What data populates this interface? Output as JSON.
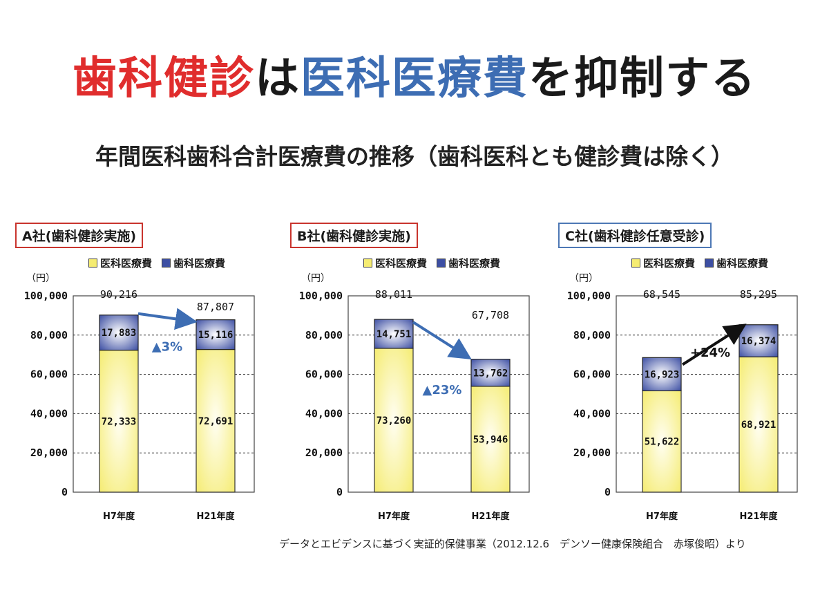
{
  "title": {
    "part1": "歯科健診",
    "part2": "は",
    "part3": "医科医療費",
    "part4": "を抑制する",
    "colors": {
      "part1": "#e02d2d",
      "part2": "#1a1a1a",
      "part3": "#3d6db3",
      "part4": "#1a1a1a"
    }
  },
  "subtitle": "年間医科歯科合計医療費の推移（歯科医科とも健診費は除く）",
  "legend": {
    "medical": "医科医療費",
    "dental": "歯科医療費"
  },
  "y_unit": "（円）",
  "colors": {
    "medical": "#f5ec72",
    "dental": "#3d4fa3",
    "arrow_blue": "#3d6db3",
    "arrow_black": "#111111",
    "box_red": "#c9342d",
    "box_blue": "#4d78b5"
  },
  "source": "データとエビデンスに基づく実証的保健事業（2012.12.6　デンソー健康保険組合　赤塚俊昭）より",
  "chart_data": [
    {
      "type": "bar",
      "stacked": true,
      "label": "A社(歯科健診実施)",
      "categories": [
        "H7年度",
        "H21年度"
      ],
      "series": [
        {
          "name": "医科医療費",
          "values": [
            72333,
            72691
          ]
        },
        {
          "name": "歯科医療費",
          "values": [
            17883,
            15116
          ]
        }
      ],
      "totals": [
        90216,
        87807
      ],
      "value_labels": {
        "medical": [
          "72,333",
          "72,691"
        ],
        "dental": [
          "17,883",
          "15,116"
        ],
        "totals": [
          "90,216",
          "87,807"
        ]
      },
      "annotation": "▲3%",
      "arrow": "blue",
      "ylim": [
        0,
        100000
      ],
      "yticks": [
        "0",
        "20,000",
        "40,000",
        "60,000",
        "80,000",
        "100,000"
      ],
      "box": "red"
    },
    {
      "type": "bar",
      "stacked": true,
      "label": "B社(歯科健診実施)",
      "categories": [
        "H7年度",
        "H21年度"
      ],
      "series": [
        {
          "name": "医科医療費",
          "values": [
            73260,
            53946
          ]
        },
        {
          "name": "歯科医療費",
          "values": [
            14751,
            13762
          ]
        }
      ],
      "totals": [
        88011,
        67708
      ],
      "value_labels": {
        "medical": [
          "73,260",
          "53,946"
        ],
        "dental": [
          "14,751",
          "13,762"
        ],
        "totals": [
          "88,011",
          "67,708"
        ]
      },
      "annotation": "▲23%",
      "arrow": "blue",
      "ylim": [
        0,
        100000
      ],
      "yticks": [
        "0",
        "20,000",
        "40,000",
        "60,000",
        "80,000",
        "100,000"
      ],
      "box": "red"
    },
    {
      "type": "bar",
      "stacked": true,
      "label": "C社(歯科健診任意受診)",
      "categories": [
        "H7年度",
        "H21年度"
      ],
      "series": [
        {
          "name": "医科医療費",
          "values": [
            51622,
            68921
          ]
        },
        {
          "name": "歯科医療費",
          "values": [
            16923,
            16374
          ]
        }
      ],
      "totals": [
        68545,
        85295
      ],
      "value_labels": {
        "medical": [
          "51,622",
          "68,921"
        ],
        "dental": [
          "16,923",
          "16,374"
        ],
        "totals": [
          "68,545",
          "85,295"
        ]
      },
      "annotation": "+24%",
      "arrow": "black",
      "ylim": [
        0,
        100000
      ],
      "yticks": [
        "0",
        "20,000",
        "40,000",
        "60,000",
        "80,000",
        "100,000"
      ],
      "box": "blue"
    }
  ]
}
